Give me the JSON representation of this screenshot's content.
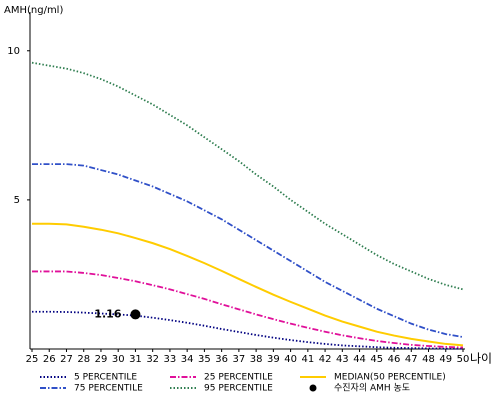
{
  "chart_data": {
    "type": "line",
    "y_label": "AMH(ng/ml)",
    "x_label": "나이",
    "x": [
      25,
      26,
      27,
      28,
      29,
      30,
      31,
      32,
      33,
      34,
      35,
      36,
      37,
      38,
      39,
      40,
      41,
      42,
      43,
      44,
      45,
      46,
      47,
      48,
      49,
      50
    ],
    "xlim": [
      25,
      50
    ],
    "xticks": [
      25,
      26,
      27,
      28,
      29,
      30,
      31,
      32,
      33,
      34,
      35,
      36,
      37,
      38,
      39,
      40,
      41,
      42,
      43,
      44,
      45,
      46,
      47,
      48,
      49,
      50
    ],
    "ylim": [
      0,
      11.3
    ],
    "yticks": [
      5,
      10
    ],
    "series": [
      {
        "name": "5 PERCENTILE",
        "color": "#000080",
        "dash": "dot",
        "values": [
          1.25,
          1.25,
          1.24,
          1.22,
          1.19,
          1.16,
          1.12,
          1.05,
          0.97,
          0.88,
          0.78,
          0.67,
          0.57,
          0.47,
          0.38,
          0.3,
          0.23,
          0.17,
          0.12,
          0.09,
          0.06,
          0.04,
          0.03,
          0.02,
          0.01,
          0.01
        ]
      },
      {
        "name": "25 PERCENTILE",
        "color": "#e0109a",
        "dash": "dashdot",
        "values": [
          2.6,
          2.6,
          2.6,
          2.55,
          2.48,
          2.38,
          2.27,
          2.14,
          2.0,
          1.84,
          1.68,
          1.5,
          1.33,
          1.16,
          1.0,
          0.85,
          0.71,
          0.58,
          0.46,
          0.36,
          0.27,
          0.2,
          0.14,
          0.1,
          0.07,
          0.05
        ]
      },
      {
        "name": "MEDIAN(50 PERCENTILE)",
        "color": "#ffcc00",
        "dash": "solid",
        "values": [
          4.2,
          4.2,
          4.18,
          4.1,
          4.0,
          3.88,
          3.72,
          3.55,
          3.35,
          3.12,
          2.88,
          2.62,
          2.35,
          2.08,
          1.82,
          1.58,
          1.35,
          1.12,
          0.92,
          0.75,
          0.58,
          0.45,
          0.34,
          0.25,
          0.17,
          0.12
        ]
      },
      {
        "name": "75 PERCENTILE",
        "color": "#3050c8",
        "dash": "dashdot",
        "values": [
          6.2,
          6.2,
          6.2,
          6.15,
          6.0,
          5.85,
          5.65,
          5.45,
          5.2,
          4.95,
          4.65,
          4.35,
          4.0,
          3.65,
          3.3,
          2.95,
          2.6,
          2.25,
          1.95,
          1.65,
          1.35,
          1.1,
          0.85,
          0.65,
          0.5,
          0.4
        ]
      },
      {
        "name": "95 PERCENTILE",
        "color": "#2e7d4f",
        "dash": "dot",
        "values": [
          9.6,
          9.5,
          9.4,
          9.25,
          9.05,
          8.8,
          8.5,
          8.2,
          7.85,
          7.5,
          7.1,
          6.7,
          6.3,
          5.85,
          5.45,
          5.0,
          4.6,
          4.2,
          3.85,
          3.5,
          3.15,
          2.85,
          2.6,
          2.35,
          2.15,
          2.0
        ]
      }
    ],
    "marker": {
      "name": "수진자의 AMH 농도",
      "x": 31,
      "y": 1.16,
      "color": "#000000"
    }
  }
}
